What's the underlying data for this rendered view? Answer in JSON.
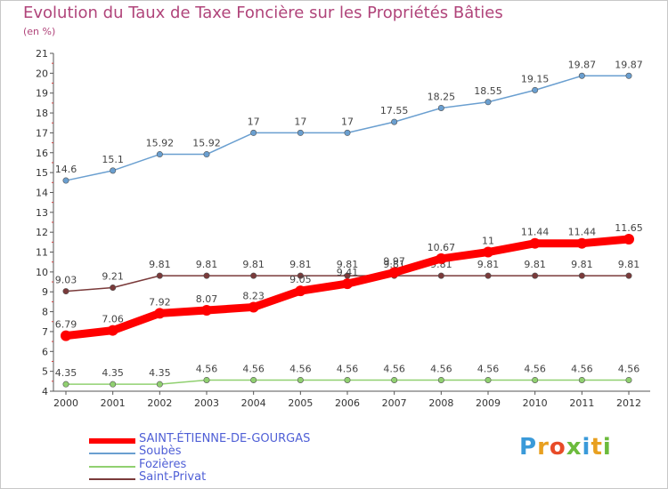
{
  "title": "Evolution du Taux de Taxe Foncière sur les Propriétés Bâties",
  "subtitle": "(en %)",
  "logo": [
    "P",
    "r",
    "o",
    "x",
    "i",
    "t",
    "i"
  ],
  "logo_colors": [
    "#3a9ad9",
    "#e8a020",
    "#e84b28",
    "#6cbb3c",
    "#3a9ad9",
    "#e8a020",
    "#6cbb3c"
  ],
  "chart_data": {
    "type": "line",
    "title": "Evolution du Taux de Taxe Foncière sur les Propriétés Bâties",
    "ylabel": "(en %)",
    "x": [
      "2000",
      "2001",
      "2002",
      "2003",
      "2004",
      "2005",
      "2006",
      "2007",
      "2008",
      "2009",
      "2010",
      "2011",
      "2012"
    ],
    "ylim": [
      4,
      21
    ],
    "yticks": [
      "4",
      "5",
      "6",
      "7",
      "8",
      "9",
      "10",
      "11",
      "12",
      "13",
      "14",
      "15",
      "16",
      "17",
      "18",
      "19",
      "20",
      "21"
    ],
    "grid": false,
    "legend_position": "bottom-left",
    "series": [
      {
        "name": "SAINT-ÉTIENNE-DE-GOURGAS",
        "color": "#ff0000",
        "values": [
          6.79,
          7.06,
          7.92,
          8.07,
          8.23,
          9.05,
          9.41,
          9.97,
          10.67,
          11,
          11.44,
          11.44,
          11.65
        ],
        "labels": [
          "6.79",
          "7.06",
          "7.92",
          "8.07",
          "8.23",
          "9.05",
          "9.41",
          "9.97",
          "10.67",
          "11",
          "11.44",
          "11.44",
          "11.65"
        ],
        "bold": true
      },
      {
        "name": "Soubès",
        "color": "#6a9fd0",
        "values": [
          14.6,
          15.1,
          15.92,
          15.92,
          17,
          17,
          17,
          17.55,
          18.25,
          18.55,
          19.15,
          19.87,
          19.87
        ],
        "labels": [
          "14.6",
          "15.1",
          "15.92",
          "15.92",
          "17",
          "17",
          "17",
          "17.55",
          "18.25",
          "18.55",
          "19.15",
          "19.87",
          "19.87"
        ]
      },
      {
        "name": "Fozières",
        "color": "#90d070",
        "values": [
          4.35,
          4.35,
          4.35,
          4.56,
          4.56,
          4.56,
          4.56,
          4.56,
          4.56,
          4.56,
          4.56,
          4.56,
          4.56
        ],
        "labels": [
          "4.35",
          "4.35",
          "4.35",
          "4.56",
          "4.56",
          "4.56",
          "4.56",
          "4.56",
          "4.56",
          "4.56",
          "4.56",
          "4.56",
          "4.56"
        ]
      },
      {
        "name": "Saint-Privat",
        "color": "#7a3a3a",
        "values": [
          9.03,
          9.21,
          9.81,
          9.81,
          9.81,
          9.81,
          9.81,
          9.81,
          9.81,
          9.81,
          9.81,
          9.81,
          9.81
        ],
        "labels": [
          "9.03",
          "9.21",
          "9.81",
          "9.81",
          "9.81",
          "9.81",
          "9.81",
          "9.81",
          "9.81",
          "9.81",
          "9.81",
          "9.81",
          "9.81"
        ]
      }
    ]
  }
}
